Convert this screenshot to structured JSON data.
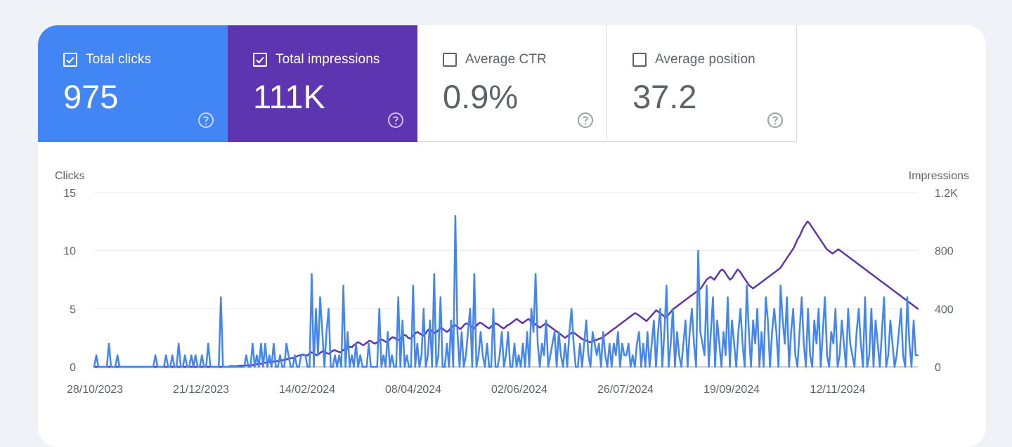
{
  "tiles": [
    {
      "label": "Total clicks",
      "value": "975",
      "checked": true,
      "color": "#4285f4"
    },
    {
      "label": "Total impressions",
      "value": "111K",
      "checked": true,
      "color": "#5e35b1"
    },
    {
      "label": "Average CTR",
      "value": "0.9%",
      "checked": false,
      "color": "#ffffff"
    },
    {
      "label": "Average position",
      "value": "37.2",
      "checked": false,
      "color": "#ffffff"
    }
  ],
  "icons": {
    "checkbox_checked": "check-icon",
    "help": "question-circle-icon"
  },
  "chart_data": {
    "type": "line",
    "ylabel_left": "Clicks",
    "ylabel_right": "Impressions",
    "y_left_ticks": [
      "15",
      "10",
      "5",
      "0"
    ],
    "y_right_ticks": [
      "1.2K",
      "800",
      "400",
      "0"
    ],
    "ylim_left": [
      0,
      15
    ],
    "ylim_right": [
      0,
      1200
    ],
    "x_tick_labels": [
      "28/10/2023",
      "21/12/2023",
      "14/02/2024",
      "08/04/2024",
      "02/06/2024",
      "26/07/2024",
      "19/09/2024",
      "12/11/2024"
    ],
    "grid": true,
    "series": [
      {
        "name": "Clicks",
        "axis": "left",
        "color": "#4285f4",
        "values": [
          0,
          1,
          0,
          0,
          0,
          0,
          0,
          2,
          0,
          0,
          0,
          1,
          0,
          0,
          0,
          0,
          0,
          0,
          0,
          0,
          0,
          0,
          0,
          0,
          0,
          0,
          0,
          0,
          0,
          1,
          0,
          0,
          0,
          0,
          1,
          0,
          0,
          1,
          0,
          0,
          2,
          0,
          0,
          1,
          0,
          0,
          1,
          0,
          1,
          0,
          0,
          1,
          0,
          0,
          2,
          0,
          0,
          0,
          0,
          0,
          6,
          0,
          0,
          0,
          0,
          0,
          0,
          0,
          0,
          0,
          0,
          0,
          1,
          0,
          0,
          2,
          0,
          1,
          0,
          2,
          0,
          2,
          0,
          1,
          0,
          2,
          0,
          0,
          1,
          0,
          0,
          2,
          1,
          0,
          0,
          1,
          0,
          0,
          1,
          1,
          1,
          0,
          0,
          8,
          0,
          5,
          1,
          6,
          3,
          0,
          3,
          5,
          0,
          0,
          1,
          0,
          1,
          0,
          7,
          0,
          3,
          0,
          1,
          0,
          2,
          0,
          1,
          0,
          0,
          0,
          2,
          0,
          0,
          0,
          0,
          5,
          0,
          1,
          0,
          3,
          0,
          1,
          0,
          0,
          6,
          0,
          4,
          0,
          1,
          0,
          0,
          7,
          0,
          2,
          0,
          1,
          5,
          0,
          1,
          4,
          0,
          8,
          0,
          1,
          6,
          0,
          0,
          2,
          0,
          4,
          0,
          13,
          3,
          0,
          3,
          0,
          1,
          3,
          5,
          0,
          8,
          0,
          1,
          3,
          1,
          0,
          2,
          0,
          0,
          5,
          0,
          0,
          1,
          3,
          0,
          1,
          3,
          0,
          0,
          2,
          0,
          1,
          0,
          2,
          0,
          3,
          0,
          5,
          3,
          8,
          2,
          0,
          2,
          1,
          4,
          0,
          1,
          2,
          3,
          0,
          3,
          1,
          0,
          2,
          0,
          3,
          5,
          2,
          0,
          0,
          2,
          0,
          2,
          4,
          1,
          0,
          3,
          2,
          1,
          2,
          0,
          3,
          1,
          0,
          2,
          0,
          2,
          1,
          3,
          0,
          2,
          1,
          1,
          2,
          0,
          1,
          0,
          2,
          3,
          0,
          2,
          0,
          3,
          0,
          2,
          4,
          0,
          3,
          5,
          0,
          3,
          7,
          0,
          2,
          5,
          0,
          3,
          1,
          0,
          2,
          4,
          0,
          3,
          5,
          2,
          0,
          10,
          3,
          2,
          1,
          7,
          0,
          3,
          6,
          0,
          4,
          2,
          0,
          3,
          1,
          6,
          0,
          4,
          2,
          0,
          3,
          5,
          2,
          0,
          7,
          3,
          0,
          4,
          2,
          5,
          0,
          3,
          0,
          6,
          4,
          0,
          3,
          5,
          3,
          0,
          7,
          4,
          2,
          6,
          0,
          3,
          5,
          1,
          0,
          3,
          6,
          2,
          0,
          5,
          1,
          0,
          4,
          2,
          5,
          0,
          3,
          6,
          1,
          0,
          3,
          2,
          5,
          0,
          1,
          4,
          2,
          0,
          5,
          2,
          1,
          0,
          3,
          5,
          2,
          0,
          6,
          0,
          1,
          5,
          0,
          4,
          2,
          0,
          3,
          6,
          0,
          1,
          4,
          2,
          0,
          1,
          3,
          5,
          1,
          0,
          6,
          2,
          0,
          4,
          1,
          1
        ]
      },
      {
        "name": "Impressions",
        "axis": "right",
        "color": "#5e35b1",
        "values": [
          0,
          0,
          0,
          0,
          0,
          0,
          0,
          0,
          0,
          0,
          0,
          0,
          0,
          0,
          0,
          0,
          0,
          0,
          0,
          0,
          0,
          0,
          0,
          0,
          0,
          0,
          0,
          0,
          0,
          0,
          0,
          0,
          0,
          0,
          0,
          0,
          0,
          0,
          0,
          0,
          0,
          0,
          0,
          0,
          0,
          0,
          0,
          0,
          0,
          0,
          0,
          0,
          0,
          0,
          0,
          0,
          0,
          0,
          0,
          0,
          0,
          0,
          0,
          0,
          0,
          0,
          0,
          0,
          0,
          0,
          5,
          5,
          5,
          5,
          5,
          8,
          8,
          8,
          10,
          10,
          10,
          12,
          12,
          15,
          18,
          20,
          22,
          25,
          28,
          30,
          32,
          35,
          35,
          38,
          40,
          40,
          42,
          45,
          48,
          50,
          55,
          58,
          60,
          62,
          70,
          75,
          80,
          82,
          85,
          80,
          78,
          90,
          100,
          95,
          85,
          80,
          90,
          100,
          110,
          105,
          95,
          90,
          100,
          110,
          115,
          110,
          105,
          100,
          110,
          120,
          125,
          130,
          140,
          135,
          150,
          160,
          170,
          165,
          155,
          150,
          160,
          170,
          180,
          175,
          165,
          160,
          170,
          180,
          190,
          185,
          175,
          170,
          180,
          195,
          205,
          200,
          190,
          185,
          195,
          210,
          220,
          215,
          200,
          195,
          205,
          220,
          235,
          240,
          230,
          220,
          215,
          230,
          250,
          260,
          250,
          240,
          230,
          245,
          260,
          270,
          260,
          250,
          240,
          250,
          265,
          280,
          290,
          280,
          270,
          260,
          275,
          290,
          300,
          295,
          285,
          275,
          265,
          280,
          295,
          305,
          300,
          290,
          280,
          270,
          265,
          280,
          290,
          300,
          295,
          285,
          275,
          265,
          270,
          285,
          290,
          300,
          310,
          320,
          330,
          320,
          310,
          300,
          310,
          320,
          330,
          320,
          310,
          300,
          290,
          280,
          270,
          280,
          290,
          300,
          290,
          280,
          270,
          260,
          250,
          240,
          230,
          220,
          210,
          200,
          210,
          220,
          230,
          240,
          230,
          220,
          210,
          200,
          190,
          185,
          180,
          175,
          170,
          175,
          180,
          185,
          190,
          195,
          200,
          210,
          220,
          230,
          240,
          250,
          260,
          270,
          280,
          290,
          300,
          310,
          320,
          330,
          340,
          350,
          360,
          370,
          365,
          355,
          345,
          335,
          325,
          315,
          330,
          345,
          360,
          375,
          390,
          380,
          370,
          360,
          350,
          340,
          355,
          370,
          385,
          400,
          410,
          420,
          430,
          440,
          450,
          460,
          470,
          480,
          490,
          500,
          510,
          520,
          530,
          540,
          560,
          580,
          600,
          610,
          620,
          610,
          600,
          620,
          640,
          660,
          670,
          660,
          640,
          620,
          600,
          610,
          630,
          650,
          670,
          660,
          640,
          620,
          600,
          580,
          560,
          550,
          540,
          550,
          560,
          570,
          580,
          590,
          600,
          610,
          620,
          630,
          640,
          650,
          660,
          670,
          680,
          700,
          720,
          740,
          760,
          780,
          800,
          820,
          850,
          880,
          900,
          930,
          960,
          980,
          1000,
          990,
          970,
          950,
          930,
          910,
          890,
          870,
          850,
          830,
          810,
          800,
          790,
          780,
          790,
          800,
          810,
          800,
          790,
          780,
          770,
          760,
          750,
          740,
          730,
          720,
          710,
          700,
          690,
          680,
          670,
          660,
          650,
          640,
          630,
          620,
          610,
          600,
          590,
          580,
          570,
          560,
          550,
          540,
          530,
          520,
          510,
          500,
          490,
          480,
          470,
          460,
          450,
          440,
          430,
          420,
          410,
          400
        ]
      }
    ]
  }
}
